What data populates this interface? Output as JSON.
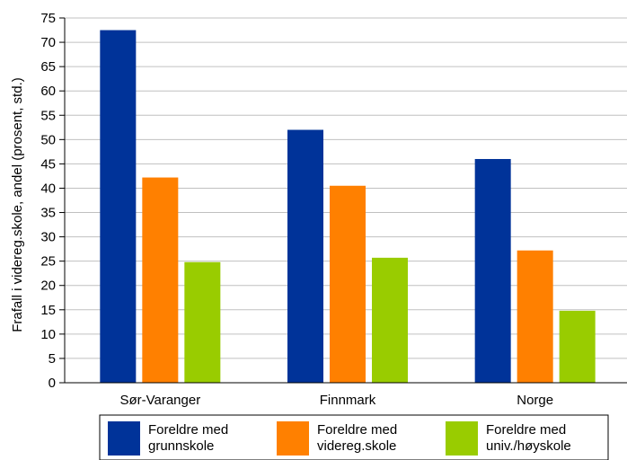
{
  "chart_data": {
    "type": "bar",
    "title": "",
    "xlabel": "",
    "ylabel": "Frafall i videreg.skole, andel (prosent, std.)",
    "ylim": [
      0,
      75
    ],
    "yticks": [
      0,
      5,
      10,
      15,
      20,
      25,
      30,
      35,
      40,
      45,
      50,
      55,
      60,
      65,
      70,
      75
    ],
    "grid": "horizontal",
    "legend_position": "bottom",
    "categories": [
      "Sør-Varanger",
      "Finnmark",
      "Norge"
    ],
    "series": [
      {
        "name": "Foreldre med grunnskole",
        "legend_lines": [
          "Foreldre med",
          "grunnskole"
        ],
        "color": "#003399",
        "values": [
          72.5,
          52,
          46
        ]
      },
      {
        "name": "Foreldre med videreg.skole",
        "legend_lines": [
          "Foreldre med",
          "videreg.skole"
        ],
        "color": "#ff8000",
        "values": [
          42.2,
          40.5,
          27.2
        ]
      },
      {
        "name": "Foreldre med univ./høyskole",
        "legend_lines": [
          "Foreldre med",
          "univ./høyskole"
        ],
        "color": "#99cc00",
        "values": [
          24.8,
          25.7,
          14.8
        ]
      }
    ]
  }
}
